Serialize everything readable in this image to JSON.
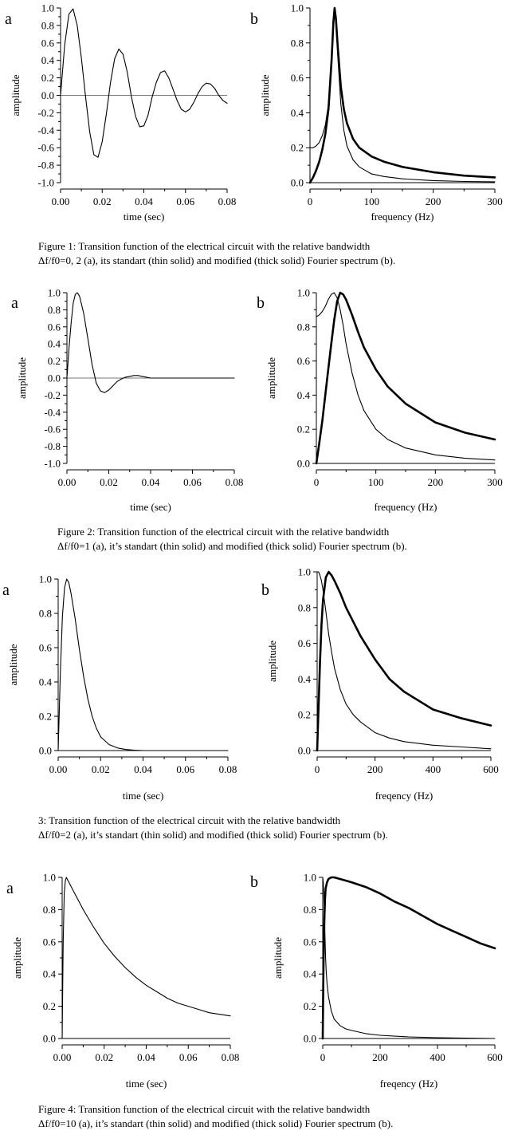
{
  "figures": [
    {
      "caption_lines": [
        "Figure 1: Transition function of the electrical circuit with the relative bandwidth",
        "Δf/f0=0, 2 (a), its standart (thin solid) and modified (thick solid) Fourier spectrum (b)."
      ],
      "panel_a": {
        "letter": "a",
        "ylabel": "amplitude",
        "xlabel": "time (sec)",
        "xticks": [
          "0.00",
          "0.02",
          "0.04",
          "0.06",
          "0.08"
        ],
        "yticks": [
          "1.0",
          "0.8",
          "0.6",
          "0.4",
          "0.2",
          "0.0",
          "-0.2",
          "-0.4",
          "-0.6",
          "-0.8",
          "-1.0"
        ]
      },
      "panel_b": {
        "letter": "b",
        "ylabel": "amplitude",
        "xlabel": "frequency (Hz)",
        "xticks": [
          "0",
          "100",
          "200",
          "300"
        ],
        "yticks": [
          "1.0",
          "0.8",
          "0.6",
          "0.4",
          "0.2",
          "0.0"
        ]
      }
    },
    {
      "caption_lines": [
        "Figure 2: Transition function of the electrical circuit with the relative bandwidth",
        "Δf/f0=1 (a), it’s standart (thin solid) and modified (thick solid) Fourier spectrum (b)."
      ],
      "panel_a": {
        "letter": "a",
        "ylabel": "amplitude",
        "xlabel": "time (sec)",
        "xticks": [
          "0.00",
          "0.02",
          "0.04",
          "0.06",
          "0.08"
        ],
        "yticks": [
          "1.0",
          "0.8",
          "0.6",
          "0.4",
          "0.2",
          "0.0",
          "-0.2",
          "-0.4",
          "-0.6",
          "-0.8",
          "-1.0"
        ]
      },
      "panel_b": {
        "letter": "b",
        "ylabel": "amplitude",
        "xlabel": "frequency (Hz)",
        "xticks": [
          "0",
          "100",
          "200",
          "300"
        ],
        "yticks": [
          "1.0",
          "0.8",
          "0.6",
          "0.4",
          "0.2",
          "0.0"
        ]
      }
    },
    {
      "caption_lines": [
        "3: Transition function of the electrical circuit with the relative bandwidth",
        "Δf/f0=2 (a), it’s standart (thin solid) and modified (thick solid) Fourier spectrum (b)."
      ],
      "panel_a": {
        "letter": "a",
        "ylabel": "amplitude",
        "xlabel": "time (sec)",
        "xticks": [
          "0.00",
          "0.02",
          "0.04",
          "0.06",
          "0.08"
        ],
        "yticks": [
          "1.0",
          "0.8",
          "0.6",
          "0.4",
          "0.2",
          "0.0"
        ]
      },
      "panel_b": {
        "letter": "b",
        "ylabel": "amplitude",
        "xlabel": "freqency (Hz)",
        "xticks": [
          "0",
          "200",
          "400",
          "600"
        ],
        "yticks": [
          "1.0",
          "0.8",
          "0.6",
          "0.4",
          "0.2",
          "0.0"
        ]
      }
    },
    {
      "caption_lines": [
        "Figure 4: Transition function of the electrical circuit with the relative bandwidth",
        "Δf/f0=10 (a), it’s standart (thin solid) and modified (thick solid) Fourier spectrum (b)."
      ],
      "panel_a": {
        "letter": "a",
        "ylabel": "amplitude",
        "xlabel": "time (sec)",
        "xticks": [
          "0.00",
          "0.02",
          "0.04",
          "0.06",
          "0.08"
        ],
        "yticks": [
          "1.0",
          "0.8",
          "0.6",
          "0.4",
          "0.2",
          "0.0"
        ]
      },
      "panel_b": {
        "letter": "b",
        "ylabel": "amplitude",
        "xlabel": "freqency (Hz)",
        "xticks": [
          "0",
          "200",
          "400",
          "600"
        ],
        "yticks": [
          "1.0",
          "0.8",
          "0.6",
          "0.4",
          "0.2",
          "0.0"
        ]
      }
    }
  ],
  "chart_data": [
    {
      "type": "line",
      "panel": "Figure 1a",
      "xlabel": "time (sec)",
      "ylabel": "amplitude",
      "xlim": [
        0,
        0.08
      ],
      "ylim": [
        -1,
        1
      ],
      "series": [
        {
          "x": [
            0,
            0.002,
            0.004,
            0.006,
            0.008,
            0.01,
            0.012,
            0.014,
            0.016,
            0.018,
            0.02,
            0.022,
            0.024,
            0.026,
            0.028,
            0.03,
            0.032,
            0.034,
            0.036,
            0.038,
            0.04,
            0.042,
            0.044,
            0.046,
            0.048,
            0.05,
            0.052,
            0.054,
            0.056,
            0.058,
            0.06,
            0.062,
            0.064,
            0.066,
            0.068,
            0.07,
            0.072,
            0.074,
            0.076,
            0.078,
            0.08
          ],
          "y": [
            0,
            0.58,
            0.93,
            0.99,
            0.8,
            0.43,
            -0.01,
            -0.42,
            -0.68,
            -0.71,
            -0.53,
            -0.21,
            0.15,
            0.42,
            0.53,
            0.47,
            0.27,
            -0.01,
            -0.24,
            -0.36,
            -0.35,
            -0.23,
            -0.02,
            0.15,
            0.26,
            0.28,
            0.2,
            0.07,
            -0.06,
            -0.16,
            -0.19,
            -0.16,
            -0.08,
            0.02,
            0.1,
            0.14,
            0.13,
            0.08,
            0.0,
            -0.06,
            -0.09
          ]
        }
      ]
    },
    {
      "type": "line",
      "panel": "Figure 1b",
      "xlabel": "frequency (Hz)",
      "ylabel": "amplitude",
      "xlim": [
        0,
        300
      ],
      "ylim": [
        0,
        1
      ],
      "series": [
        {
          "x": [
            0,
            5,
            10,
            15,
            20,
            25,
            30,
            35,
            38,
            40,
            42,
            45,
            50,
            55,
            60,
            70,
            80,
            100,
            120,
            150,
            200,
            250,
            300
          ],
          "y": [
            0.2,
            0.2,
            0.21,
            0.23,
            0.27,
            0.33,
            0.45,
            0.72,
            0.93,
            1.0,
            0.93,
            0.73,
            0.45,
            0.3,
            0.21,
            0.13,
            0.09,
            0.05,
            0.035,
            0.022,
            0.012,
            0.007,
            0.005
          ]
        },
        {
          "x": [
            0,
            5,
            10,
            15,
            20,
            25,
            30,
            35,
            38,
            40,
            42,
            45,
            50,
            55,
            60,
            70,
            80,
            100,
            120,
            150,
            200,
            250,
            300
          ],
          "y": [
            0,
            0.03,
            0.07,
            0.12,
            0.19,
            0.28,
            0.42,
            0.7,
            0.92,
            1.0,
            0.94,
            0.78,
            0.55,
            0.42,
            0.34,
            0.25,
            0.2,
            0.15,
            0.12,
            0.09,
            0.06,
            0.04,
            0.03
          ]
        }
      ]
    },
    {
      "type": "line",
      "panel": "Figure 2a",
      "xlabel": "time (sec)",
      "ylabel": "amplitude",
      "xlim": [
        0,
        0.08
      ],
      "ylim": [
        -1,
        1
      ],
      "series": [
        {
          "x": [
            0,
            0.001,
            0.002,
            0.003,
            0.004,
            0.005,
            0.006,
            0.008,
            0.01,
            0.012,
            0.014,
            0.016,
            0.018,
            0.02,
            0.022,
            0.024,
            0.026,
            0.028,
            0.03,
            0.032,
            0.034,
            0.036,
            0.038,
            0.04,
            0.045,
            0.05,
            0.06,
            0.07,
            0.08
          ],
          "y": [
            0,
            0.35,
            0.65,
            0.88,
            0.98,
            1.0,
            0.96,
            0.76,
            0.46,
            0.16,
            -0.06,
            -0.15,
            -0.17,
            -0.14,
            -0.09,
            -0.04,
            -0.01,
            0.01,
            0.02,
            0.03,
            0.03,
            0.02,
            0.01,
            0.0,
            0.0,
            0.0,
            0.0,
            0.0,
            0.0
          ]
        }
      ]
    },
    {
      "type": "line",
      "panel": "Figure 2b",
      "xlabel": "frequency (Hz)",
      "ylabel": "amplitude",
      "xlim": [
        0,
        300
      ],
      "ylim": [
        0,
        1
      ],
      "series": [
        {
          "x": [
            0,
            5,
            10,
            15,
            20,
            25,
            30,
            35,
            40,
            45,
            50,
            60,
            70,
            80,
            100,
            120,
            150,
            200,
            250,
            300
          ],
          "y": [
            0.86,
            0.87,
            0.89,
            0.92,
            0.96,
            0.99,
            1.0,
            0.97,
            0.9,
            0.81,
            0.7,
            0.53,
            0.4,
            0.31,
            0.2,
            0.14,
            0.09,
            0.05,
            0.03,
            0.02
          ]
        },
        {
          "x": [
            0,
            5,
            10,
            15,
            20,
            25,
            30,
            35,
            40,
            45,
            50,
            60,
            70,
            80,
            100,
            120,
            150,
            200,
            250,
            300
          ],
          "y": [
            0,
            0.12,
            0.25,
            0.4,
            0.55,
            0.7,
            0.84,
            0.95,
            1.0,
            0.99,
            0.96,
            0.87,
            0.77,
            0.68,
            0.55,
            0.45,
            0.35,
            0.24,
            0.18,
            0.14
          ]
        }
      ]
    },
    {
      "type": "line",
      "panel": "Figure 3a",
      "xlabel": "time (sec)",
      "ylabel": "amplitude",
      "xlim": [
        0,
        0.08
      ],
      "ylim": [
        0,
        1
      ],
      "series": [
        {
          "x": [
            0,
            0.001,
            0.002,
            0.003,
            0.004,
            0.005,
            0.006,
            0.008,
            0.01,
            0.012,
            0.014,
            0.016,
            0.018,
            0.02,
            0.024,
            0.028,
            0.032,
            0.036,
            0.04,
            0.05,
            0.06,
            0.08
          ],
          "y": [
            0,
            0.45,
            0.78,
            0.95,
            1.0,
            0.98,
            0.92,
            0.77,
            0.59,
            0.43,
            0.3,
            0.2,
            0.13,
            0.08,
            0.035,
            0.015,
            0.006,
            0.002,
            0.0,
            0.0,
            0.0,
            0.0
          ]
        }
      ]
    },
    {
      "type": "line",
      "panel": "Figure 3b",
      "xlabel": "freqency (Hz)",
      "ylabel": "amplitude",
      "xlim": [
        0,
        600
      ],
      "ylim": [
        0,
        1
      ],
      "series": [
        {
          "x": [
            0,
            5,
            10,
            15,
            20,
            30,
            40,
            50,
            60,
            80,
            100,
            125,
            150,
            200,
            250,
            300,
            400,
            500,
            600
          ],
          "y": [
            1.0,
            1.0,
            0.98,
            0.95,
            0.9,
            0.78,
            0.65,
            0.55,
            0.46,
            0.34,
            0.26,
            0.2,
            0.16,
            0.1,
            0.07,
            0.05,
            0.03,
            0.02,
            0.01
          ]
        },
        {
          "x": [
            0,
            5,
            10,
            15,
            20,
            30,
            40,
            50,
            60,
            80,
            100,
            125,
            150,
            200,
            250,
            300,
            400,
            500,
            600
          ],
          "y": [
            0,
            0.25,
            0.5,
            0.7,
            0.84,
            0.97,
            1.0,
            0.98,
            0.95,
            0.88,
            0.8,
            0.72,
            0.64,
            0.51,
            0.4,
            0.33,
            0.23,
            0.18,
            0.14
          ]
        }
      ]
    },
    {
      "type": "line",
      "panel": "Figure 4a",
      "xlabel": "time (sec)",
      "ylabel": "amplitude",
      "xlim": [
        0,
        0.08
      ],
      "ylim": [
        0,
        1
      ],
      "series": [
        {
          "x": [
            0,
            0.0005,
            0.001,
            0.0015,
            0.002,
            0.004,
            0.006,
            0.01,
            0.015,
            0.02,
            0.025,
            0.03,
            0.035,
            0.04,
            0.045,
            0.05,
            0.055,
            0.06,
            0.065,
            0.07,
            0.075,
            0.08
          ],
          "y": [
            0,
            0.6,
            0.9,
            0.98,
            1.0,
            0.95,
            0.9,
            0.8,
            0.69,
            0.59,
            0.51,
            0.44,
            0.38,
            0.33,
            0.29,
            0.25,
            0.22,
            0.2,
            0.18,
            0.16,
            0.15,
            0.14
          ]
        }
      ]
    },
    {
      "type": "line",
      "panel": "Figure 4b",
      "xlabel": "freqency (Hz)",
      "ylabel": "amplitude",
      "xlim": [
        0,
        600
      ],
      "ylim": [
        0,
        1
      ],
      "series": [
        {
          "x": [
            0,
            2,
            4,
            6,
            8,
            10,
            12,
            15,
            20,
            30,
            40,
            60,
            80,
            100,
            150,
            200,
            300,
            400,
            600
          ],
          "y": [
            1.0,
            0.97,
            0.88,
            0.75,
            0.62,
            0.5,
            0.42,
            0.34,
            0.26,
            0.17,
            0.12,
            0.08,
            0.06,
            0.05,
            0.03,
            0.02,
            0.01,
            0.005,
            0.0
          ]
        },
        {
          "x": [
            0,
            2,
            4,
            6,
            8,
            10,
            15,
            20,
            30,
            40,
            60,
            80,
            100,
            150,
            200,
            250,
            300,
            350,
            400,
            450,
            500,
            550,
            600
          ],
          "y": [
            0,
            0.35,
            0.6,
            0.77,
            0.87,
            0.93,
            0.97,
            0.99,
            1.0,
            1.0,
            0.99,
            0.98,
            0.97,
            0.94,
            0.9,
            0.85,
            0.81,
            0.76,
            0.71,
            0.67,
            0.63,
            0.59,
            0.56
          ]
        }
      ]
    }
  ]
}
